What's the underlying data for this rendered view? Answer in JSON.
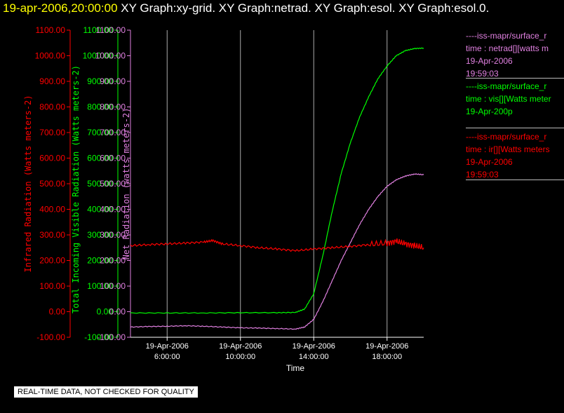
{
  "header": {
    "timestamp": "19-apr-2006,20:00:00",
    "graphs": "XY Graph:xy-grid.  XY Graph:netrad.  XY Graph:esol.  XY Graph:esol.0."
  },
  "footer": {
    "note": "REAL-TIME DATA, NOT CHECKED FOR QUALITY"
  },
  "legend": [
    {
      "lines": [
        "----iss-mapr/surface_r",
        "time : netrad[][watts m",
        "19-Apr-2006",
        "19:59:03"
      ],
      "color": "#e080e0"
    },
    {
      "lines": [
        "----iss-mapr/surface_r",
        "time : vis[][Watts meter",
        "19-Apr-200p"
      ],
      "color": "#00ff00"
    },
    {
      "lines": [
        "----iss-mapr/surface_r",
        "time : ir[][Watts meters",
        "19-Apr-2006",
        "19:59:03"
      ],
      "color": "#ff0000"
    }
  ],
  "colors": {
    "net": "#e080e0",
    "vis": "#00ff00",
    "ir": "#ff0000",
    "grid": "#ffffff"
  },
  "chart_data": {
    "type": "line",
    "xlabel": "Time",
    "x_ticks": [
      {
        "date": "19-Apr-2006",
        "time": "6:00:00",
        "hour": 6
      },
      {
        "date": "19-Apr-2006",
        "time": "10:00:00",
        "hour": 10
      },
      {
        "date": "19-Apr-2006",
        "time": "14:00:00",
        "hour": 14
      },
      {
        "date": "19-Apr-2006",
        "time": "18:00:00",
        "hour": 18
      }
    ],
    "xlim": [
      4.0,
      20.0
    ],
    "ylim": [
      -100,
      1100
    ],
    "y_ticks": [
      "-100.00",
      "0.00",
      "100.00",
      "200.00",
      "300.00",
      "400.00",
      "500.00",
      "600.00",
      "700.00",
      "800.00",
      "900.00",
      "1000.00",
      "1100.00"
    ],
    "y_tick_values": [
      -100,
      0,
      100,
      200,
      300,
      400,
      500,
      600,
      700,
      800,
      900,
      1000,
      1100
    ],
    "axes": [
      {
        "label": "Infrared Radiation (Watts meters-2)",
        "color": "#ff0000"
      },
      {
        "label": "Total Incoming Visible Radiation (Watts meters-2)",
        "color": "#00ff00"
      },
      {
        "label": "Net Radiation (watts meters-2)",
        "color": "#e080e0"
      }
    ],
    "series": [
      {
        "name": "netrad",
        "color": "#e080e0",
        "x": [
          4.0,
          5.0,
          6.0,
          7.0,
          8.0,
          9.0,
          10.0,
          11.0,
          12.0,
          13.0,
          13.5,
          14.0,
          14.5,
          15.0,
          15.5,
          16.0,
          16.5,
          17.0,
          17.5,
          18.0,
          18.5,
          19.0,
          19.5,
          20.0
        ],
        "y": [
          -60,
          -58,
          -57,
          -55,
          -57,
          -60,
          -63,
          -64,
          -66,
          -68,
          -60,
          -30,
          40,
          120,
          200,
          270,
          340,
          400,
          450,
          490,
          515,
          530,
          538,
          535
        ]
      },
      {
        "name": "vis",
        "color": "#00ff00",
        "x": [
          4.0,
          6.0,
          8.0,
          10.0,
          12.0,
          13.0,
          13.5,
          14.0,
          14.5,
          15.0,
          15.5,
          16.0,
          16.5,
          17.0,
          17.5,
          18.0,
          18.5,
          19.0,
          19.5,
          20.0
        ],
        "y": [
          -5,
          -5,
          -5,
          -4,
          -4,
          -3,
          10,
          70,
          220,
          390,
          540,
          660,
          760,
          840,
          910,
          960,
          1000,
          1020,
          1028,
          1030
        ]
      },
      {
        "name": "ir",
        "color": "#ff0000",
        "x": [
          4.0,
          5.0,
          6.0,
          7.0,
          8.0,
          8.5,
          9.0,
          10.0,
          11.0,
          12.0,
          13.0,
          14.0,
          15.0,
          16.0,
          17.0,
          18.0,
          18.5,
          19.0,
          19.5,
          20.0
        ],
        "y": [
          258,
          262,
          265,
          268,
          272,
          278,
          265,
          258,
          250,
          245,
          238,
          245,
          250,
          255,
          262,
          268,
          275,
          265,
          258,
          250
        ]
      }
    ]
  }
}
